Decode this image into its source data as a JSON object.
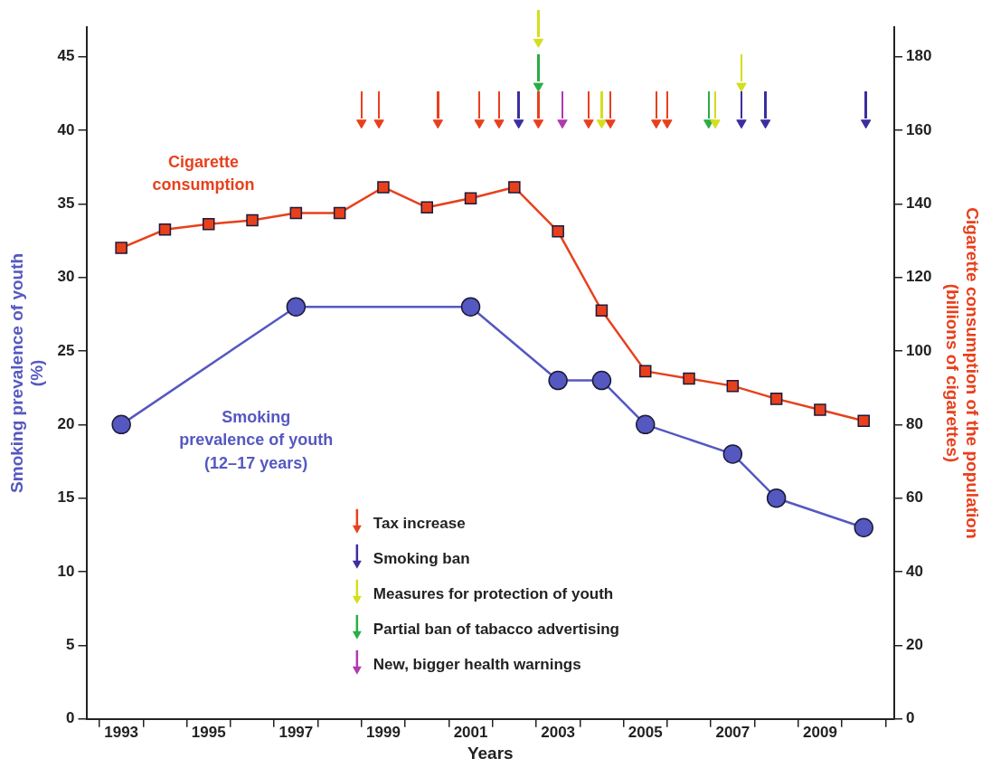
{
  "chart_data": {
    "type": "line",
    "xlabel": "Years",
    "ylabel": "Smoking prevalence of youth (%)",
    "y2label": "Cigarette consumption of the population (billions of cigarettes)",
    "xlim": [
      1992.2,
      2010.7
    ],
    "xticks": [
      {
        "value": 1992.5,
        "label": null
      },
      1993,
      {
        "value": 1993.5,
        "label": null
      },
      {
        "value": 1994.5,
        "label": null
      },
      1995,
      {
        "value": 1995.5,
        "label": null
      },
      {
        "value": 1996.5,
        "label": null
      },
      1997,
      {
        "value": 1997.5,
        "label": null
      },
      {
        "value": 1998.5,
        "label": null
      },
      1999,
      {
        "value": 1999.5,
        "label": null
      },
      {
        "value": 2000.5,
        "label": null
      },
      2001,
      {
        "value": 2001.5,
        "label": null
      },
      {
        "value": 2002.5,
        "label": null
      },
      2003,
      {
        "value": 2003.5,
        "label": null
      },
      {
        "value": 2004.5,
        "label": null
      },
      2005,
      {
        "value": 2005.5,
        "label": null
      },
      {
        "value": 2006.5,
        "label": null
      },
      2007,
      {
        "value": 2007.5,
        "label": null
      },
      {
        "value": 2008.5,
        "label": null
      },
      2009,
      {
        "value": 2009.5,
        "label": null
      },
      {
        "value": 2010.5,
        "label": null
      }
    ],
    "ylim": [
      0,
      47
    ],
    "yticks": [
      0,
      5,
      10,
      15,
      20,
      25,
      30,
      35,
      40,
      45
    ],
    "y2lim": [
      0,
      188
    ],
    "y2ticks": [
      0,
      20,
      40,
      60,
      80,
      100,
      120,
      140,
      160,
      180
    ],
    "grid": false,
    "legend": "bottom",
    "series": [
      {
        "name": "Cigarette consumption",
        "type": "line",
        "axis": "y2",
        "marker": "square",
        "color": "#e8401c",
        "x": [
          1993,
          1994,
          1995,
          1996,
          1997,
          1998,
          1999,
          2000,
          2001,
          2002,
          2003,
          2004,
          2005,
          2006,
          2007,
          2008,
          2009,
          2010
        ],
        "values": [
          128,
          133,
          134.5,
          135.5,
          137.5,
          137.5,
          144.5,
          139,
          141.5,
          144.5,
          132.5,
          111,
          94.5,
          92.5,
          90.5,
          87,
          84,
          81
        ]
      },
      {
        "name": "Smoking prevalence of youth (12–17 years)",
        "type": "line",
        "axis": "y",
        "marker": "circle",
        "color": "#5558c0",
        "x": [
          1993,
          1997,
          2001,
          2003,
          2004,
          2005,
          2007,
          2008,
          2010
        ],
        "values": [
          20,
          28,
          28,
          23,
          23,
          20,
          18,
          15,
          13
        ]
      },
      {
        "name": "Tax increase",
        "type": "scatter",
        "axis": "y",
        "marker": "triangle",
        "color": "#e8401c",
        "x": [
          1998.5,
          1998.9,
          2000.25,
          2001.2,
          2001.65,
          2002.55,
          2003.7,
          2004.2,
          2005.25,
          2005.5
        ],
        "values": [
          40.5,
          40.5,
          40.5,
          40.5,
          40.5,
          40.5,
          40.5,
          40.5,
          40.5,
          40.5
        ]
      },
      {
        "name": "Smoking ban",
        "type": "scatter",
        "axis": "y",
        "marker": "triangle",
        "color": "#3b2ea0",
        "x": [
          2002.1,
          2007.2,
          2007.75,
          2010.05
        ],
        "values": [
          40.5,
          40.5,
          40.5,
          40.5
        ]
      },
      {
        "name": "Measures for protection of youth",
        "type": "scatter",
        "axis": "y",
        "marker": "triangle",
        "color": "#d4de1e",
        "x": [
          2002.55,
          2004.0,
          2006.6,
          2007.2
        ],
        "values": [
          46,
          40.5,
          40.5,
          43
        ]
      },
      {
        "name": "Partial ban of tabacco advertising",
        "type": "scatter",
        "axis": "y",
        "marker": "triangle",
        "color": "#2aad45",
        "x": [
          2002.55,
          2006.45
        ],
        "values": [
          43,
          40.5
        ]
      },
      {
        "name": "New, bigger health warnings",
        "type": "scatter",
        "axis": "y",
        "marker": "triangle",
        "color": "#b03ab0",
        "x": [
          2003.1
        ],
        "values": [
          40.5
        ]
      }
    ]
  }
}
